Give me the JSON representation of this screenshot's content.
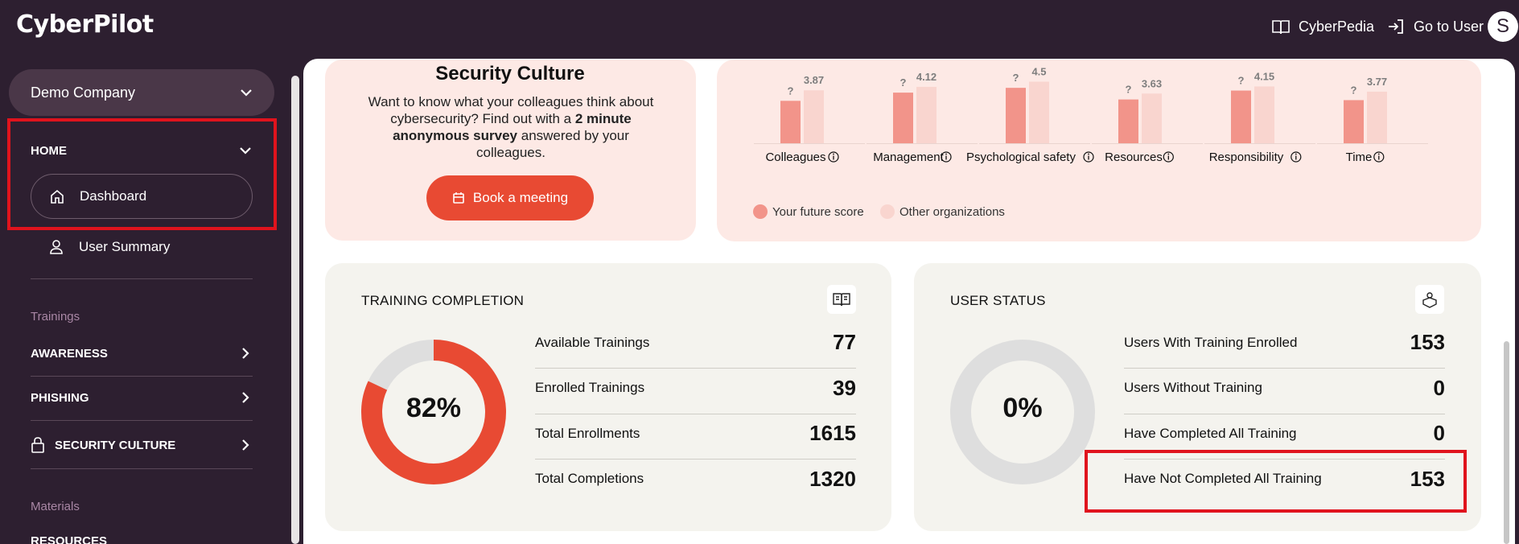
{
  "app": {
    "logo": "CyberPilot"
  },
  "topbar": {
    "cyberpedia": "CyberPedia",
    "go_to_user": "Go to User",
    "avatar_letter": "S"
  },
  "sidebar": {
    "company": "Demo Company",
    "home_section": "HOME",
    "dashboard": "Dashboard",
    "user_summary": "User Summary",
    "trainings_group": "Trainings",
    "awareness": "AWARENESS",
    "phishing": "PHISHING",
    "security_culture": "SECURITY CULTURE",
    "materials_group": "Materials",
    "resources": "RESOURCES"
  },
  "security_culture_card": {
    "title": "Security Culture",
    "text_before": "Want to know what your colleagues think about cybersecurity? Find out with a ",
    "text_bold": "2 minute anonymous survey",
    "text_after": " answered by your colleagues.",
    "button": "Book a meeting"
  },
  "chart_data": {
    "type": "bar",
    "categories": [
      "Colleagues",
      "Management",
      "Psychological safety",
      "Resources",
      "Responsibility",
      "Time"
    ],
    "series": [
      {
        "name": "Your future score",
        "labels": [
          "?",
          "?",
          "?",
          "?",
          "?",
          "?"
        ],
        "values": [
          3.1,
          3.7,
          4.05,
          3.2,
          3.85,
          3.15
        ],
        "color": "#f2948a"
      },
      {
        "name": "Other organizations",
        "values": [
          3.87,
          4.12,
          4.5,
          3.63,
          4.15,
          3.77
        ],
        "color": "#f9d5cf"
      }
    ],
    "ylim": [
      0,
      5
    ]
  },
  "training_completion": {
    "title": "TRAINING COMPLETION",
    "percent": "82%",
    "percent_value": 82,
    "rows": [
      {
        "label": "Available Trainings",
        "value": "77"
      },
      {
        "label": "Enrolled Trainings",
        "value": "39"
      },
      {
        "label": "Total Enrollments",
        "value": "1615"
      },
      {
        "label": "Total Completions",
        "value": "1320"
      }
    ]
  },
  "user_status": {
    "title": "USER STATUS",
    "percent": "0%",
    "percent_value": 0,
    "rows": [
      {
        "label": "Users With Training Enrolled",
        "value": "153"
      },
      {
        "label": "Users Without Training",
        "value": "0"
      },
      {
        "label": "Have Completed All Training",
        "value": "0"
      },
      {
        "label": "Have Not Completed All Training",
        "value": "153"
      }
    ]
  },
  "colors": {
    "accent": "#e84a33",
    "sidebar_bg": "#2d1f30",
    "highlight": "#e0131d"
  }
}
